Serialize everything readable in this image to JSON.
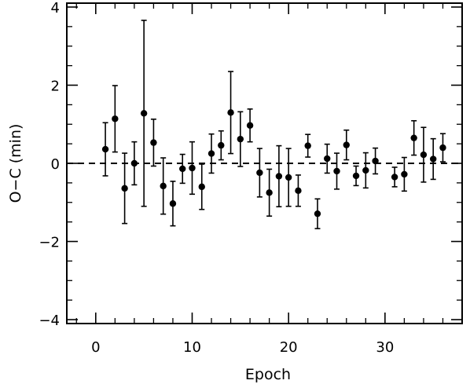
{
  "chart_data": {
    "type": "scatter",
    "title": "",
    "xlabel": "Epoch",
    "ylabel": "O−C (min)",
    "xlim": [
      -3,
      38
    ],
    "ylim": [
      -4.1,
      4.1
    ],
    "xticks": [
      0,
      10,
      20,
      30
    ],
    "yticks": [
      -4,
      -2,
      0,
      2,
      4
    ],
    "xtick_labels": [
      "0",
      "10",
      "20",
      "30"
    ],
    "ytick_labels": [
      "−4",
      "−2",
      "0",
      "2",
      "4"
    ],
    "reference_line": {
      "y": 0,
      "style": "dashed"
    },
    "grid": false,
    "legend": "none",
    "marker_color": "#000000",
    "series": [
      {
        "x": [
          1,
          2,
          3,
          4,
          5,
          6,
          7,
          8,
          9,
          10,
          11,
          12,
          13,
          14,
          15,
          16,
          17,
          18,
          19,
          20,
          21,
          22,
          23,
          24,
          25,
          26,
          27,
          28,
          29,
          31,
          32,
          33,
          34,
          35,
          36
        ],
        "y": [
          0.36,
          1.14,
          -0.64,
          0.0,
          1.28,
          0.53,
          -0.58,
          -1.03,
          -0.14,
          -0.12,
          -0.6,
          0.25,
          0.46,
          1.3,
          0.62,
          0.97,
          -0.24,
          -0.75,
          -0.33,
          -0.36,
          -0.7,
          0.45,
          -1.29,
          0.12,
          -0.2,
          0.47,
          -0.32,
          -0.18,
          0.06,
          -0.35,
          -0.28,
          0.65,
          0.22,
          0.11,
          0.4
        ],
        "err": [
          0.68,
          0.85,
          0.9,
          0.55,
          2.38,
          0.6,
          0.72,
          0.57,
          0.37,
          0.67,
          0.58,
          0.5,
          0.37,
          1.05,
          0.7,
          0.42,
          0.62,
          0.6,
          0.78,
          0.74,
          0.4,
          0.29,
          0.38,
          0.37,
          0.46,
          0.38,
          0.25,
          0.45,
          0.33,
          0.25,
          0.43,
          0.44,
          0.7,
          0.52,
          0.36
        ]
      }
    ]
  }
}
